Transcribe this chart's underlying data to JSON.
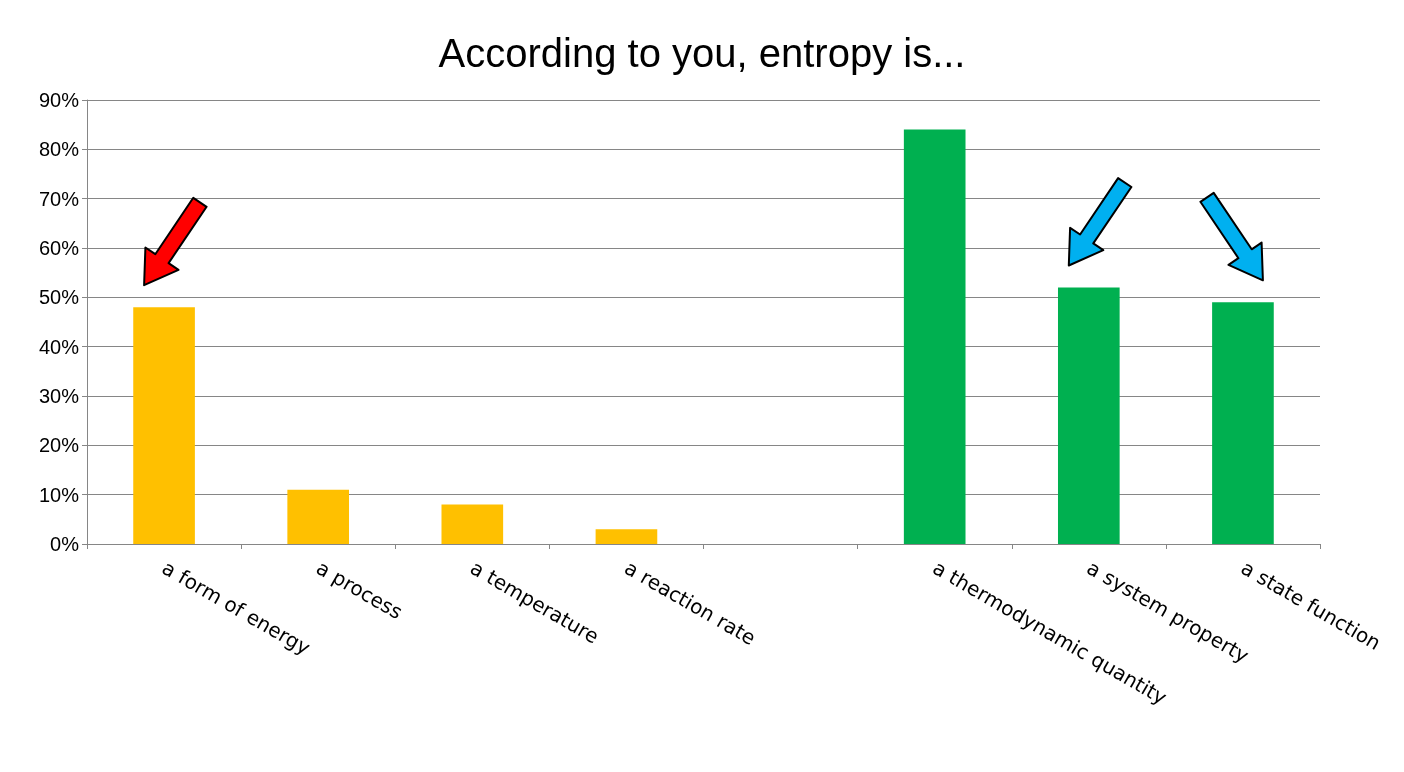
{
  "chart_data": {
    "type": "bar",
    "title": "According to you, entropy is...",
    "categories": [
      "a form of energy",
      "a process",
      "a temperature",
      "a reaction rate",
      null,
      "a thermodynamic quantity",
      "a system property",
      "a state function"
    ],
    "values": [
      48,
      11,
      8,
      3,
      null,
      84,
      52,
      49
    ],
    "colors": [
      "#ffc000",
      "#ffc000",
      "#ffc000",
      "#ffc000",
      "#ffc000",
      "#00b050",
      "#00b050",
      "#00b050"
    ],
    "ylim": [
      0,
      90
    ],
    "yticks": [
      {
        "value": 0,
        "label": "0%"
      },
      {
        "value": 10,
        "label": "10%"
      },
      {
        "value": 20,
        "label": "20%"
      },
      {
        "value": 30,
        "label": "30%"
      },
      {
        "value": 40,
        "label": "40%"
      },
      {
        "value": 50,
        "label": "50%"
      },
      {
        "value": 60,
        "label": "60%"
      },
      {
        "value": 70,
        "label": "70%"
      },
      {
        "value": 80,
        "label": "80%"
      },
      {
        "value": 90,
        "label": "90%"
      }
    ],
    "grid": "y"
  }
}
